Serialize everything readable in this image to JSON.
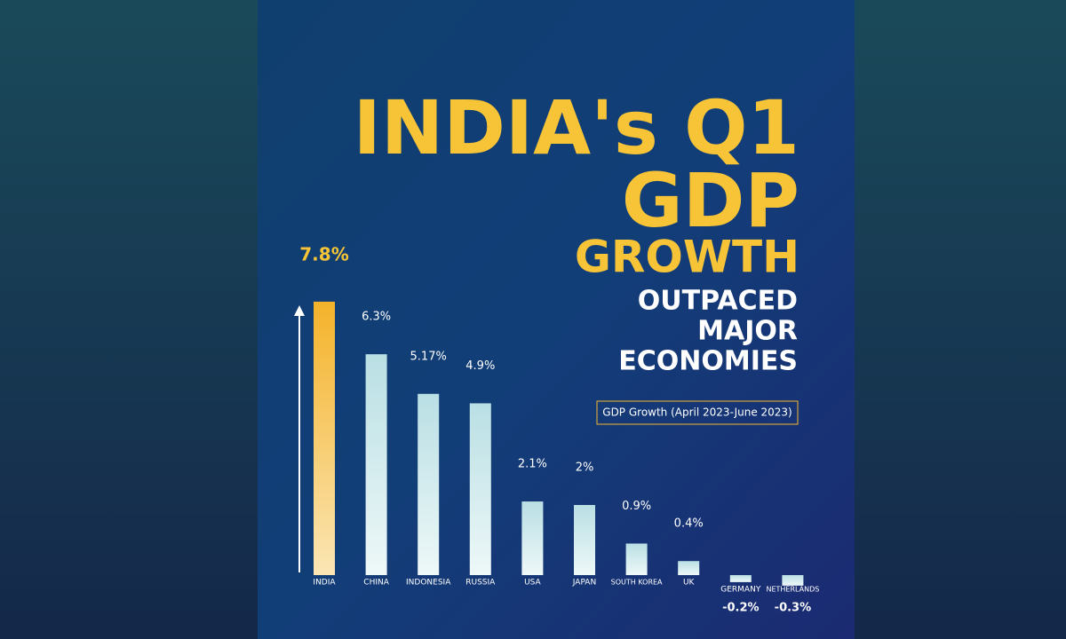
{
  "chart_data": {
    "type": "bar",
    "title_lines": [
      "INDIA's Q1",
      "GDP",
      "GROWTH"
    ],
    "subtitle_lines": [
      "OUTPACED",
      "MAJOR",
      "ECONOMIES"
    ],
    "note": "GDP Growth (April 2023-June 2023)",
    "categories": [
      "INDIA",
      "CHINA",
      "INDONESIA",
      "RUSSIA",
      "USA",
      "JAPAN",
      "SOUTH KOREA",
      "UK",
      "GERMANY",
      "NETHERLANDS"
    ],
    "values": [
      7.8,
      6.3,
      5.17,
      4.9,
      2.1,
      2,
      0.9,
      0.4,
      -0.2,
      -0.3
    ],
    "value_labels": [
      "7.8%",
      "6.3%",
      "5.17%",
      "4.9%",
      "2.1%",
      "2%",
      "0.9%",
      "0.4%",
      "-0.2%",
      "-0.3%"
    ],
    "highlight_color": "#f5b82e",
    "color": "#d8f0f2",
    "label_color": "#f7c437"
  }
}
